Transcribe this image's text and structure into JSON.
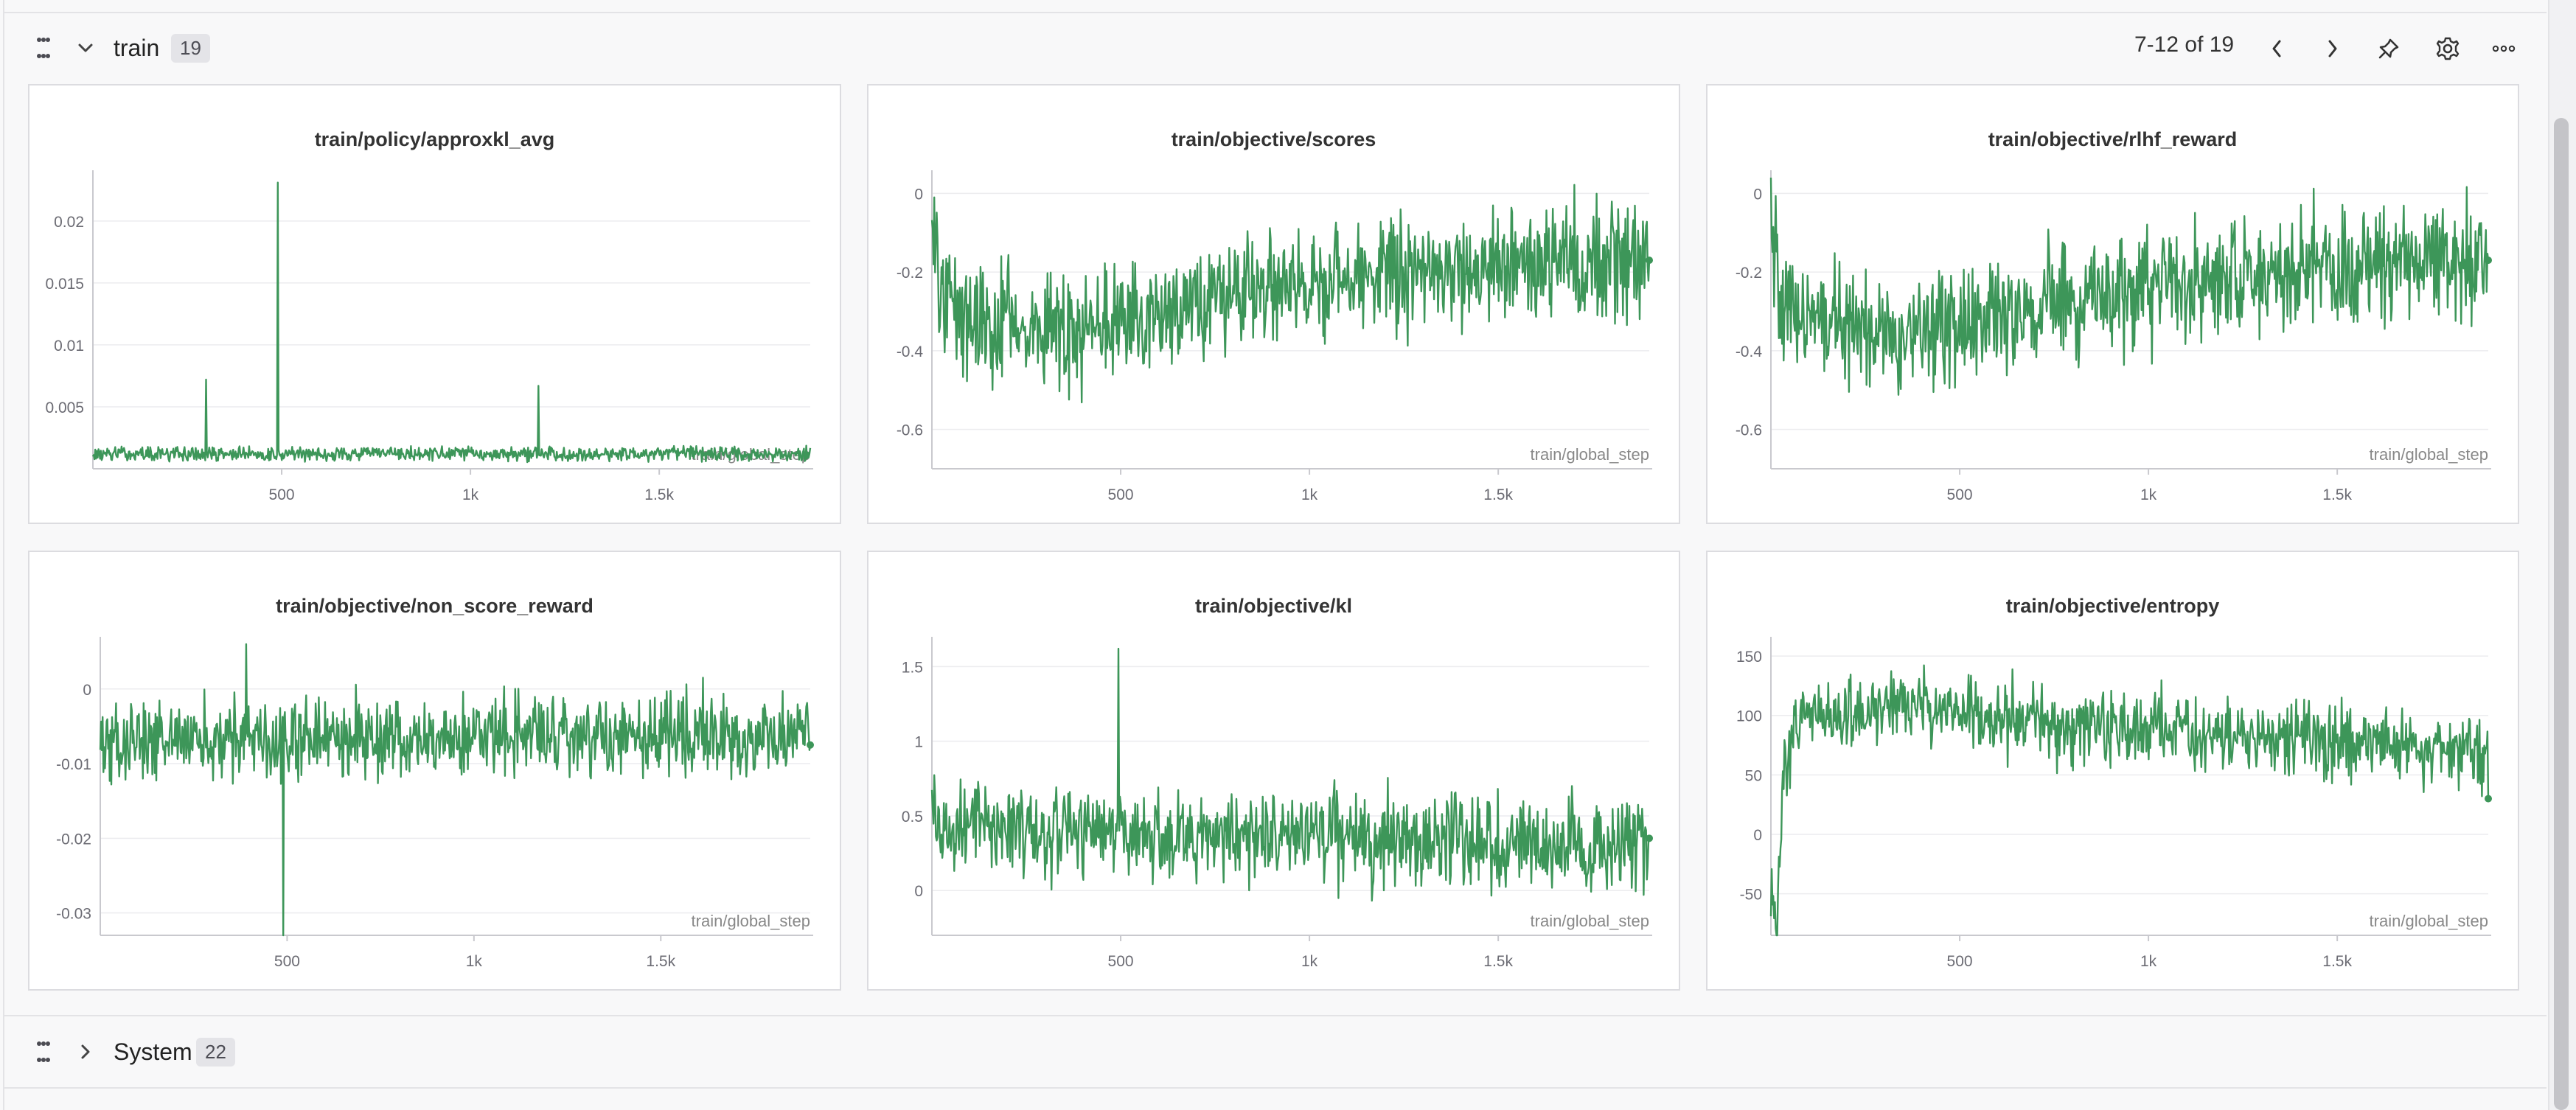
{
  "train_section": {
    "title": "train",
    "count": "19",
    "pager": "7-12 of 19"
  },
  "system_section": {
    "title": "System",
    "count": "22"
  },
  "icons": [
    "drag-handle-icon",
    "chevron-down-icon",
    "chevron-left-icon",
    "chevron-right-icon",
    "pin-icon",
    "gear-icon",
    "more-icon",
    "chevron-right-icon"
  ],
  "colors": {
    "series": "#3d9659",
    "grid": "#ececef",
    "axis": "#c9c9ce",
    "tick_text": "#6b6b73"
  },
  "chart_data": [
    {
      "type": "line",
      "title": "train/policy/approxkl_avg",
      "xlabel": "train/global_step",
      "xlim": [
        0,
        1900
      ],
      "ylim": [
        0,
        0.0235
      ],
      "x_ticks": [
        500,
        1000,
        1500
      ],
      "x_tick_labels": [
        "500",
        "1k",
        "1.5k"
      ],
      "y_ticks": [
        0.005,
        0.01,
        0.015,
        0.02
      ],
      "y_tick_labels": [
        "0.005",
        "0.01",
        "0.015",
        "0.02"
      ],
      "series": [
        {
          "start_x": 0,
          "end_x": 1900,
          "baseline": 0.0012,
          "noise": 0.0007,
          "spikes": [
            [
              300,
              0.0072
            ],
            [
              490,
              0.0231
            ],
            [
              1180,
              0.0067
            ]
          ]
        }
      ]
    },
    {
      "type": "line",
      "title": "train/objective/scores",
      "xlabel": "train/global_step",
      "xlim": [
        0,
        1900
      ],
      "ylim": [
        -0.7,
        0.04
      ],
      "x_ticks": [
        500,
        1000,
        1500
      ],
      "x_tick_labels": [
        "500",
        "1k",
        "1.5k"
      ],
      "y_ticks": [
        0,
        -0.2,
        -0.4,
        -0.6
      ],
      "y_tick_labels": [
        "0",
        "-0.2",
        "-0.4",
        "-0.6"
      ],
      "series": [
        {
          "start_x": 0,
          "end_x": 1900,
          "trend": [
            [
              0,
              -0.05
            ],
            [
              30,
              -0.3
            ],
            [
              350,
              -0.36
            ],
            [
              800,
              -0.26
            ],
            [
              1200,
              -0.2
            ],
            [
              1900,
              -0.17
            ]
          ],
          "noise": 0.12,
          "last_value": -0.17
        }
      ]
    },
    {
      "type": "line",
      "title": "train/objective/rlhf_reward",
      "xlabel": "train/global_step",
      "xlim": [
        0,
        1900
      ],
      "ylim": [
        -0.7,
        0.04
      ],
      "x_ticks": [
        500,
        1000,
        1500
      ],
      "x_tick_labels": [
        "500",
        "1k",
        "1.5k"
      ],
      "y_ticks": [
        0,
        -0.2,
        -0.4,
        -0.6
      ],
      "y_tick_labels": [
        "0",
        "-0.2",
        "-0.4",
        "-0.6"
      ],
      "series": [
        {
          "start_x": 0,
          "end_x": 1900,
          "trend": [
            [
              0,
              -0.05
            ],
            [
              30,
              -0.3
            ],
            [
              350,
              -0.37
            ],
            [
              800,
              -0.27
            ],
            [
              1200,
              -0.21
            ],
            [
              1900,
              -0.17
            ]
          ],
          "noise": 0.12,
          "last_value": -0.17
        }
      ]
    },
    {
      "type": "line",
      "title": "train/objective/non_score_reward",
      "xlabel": "train/global_step",
      "xlim": [
        0,
        1900
      ],
      "ylim": [
        -0.033,
        0.006
      ],
      "x_ticks": [
        500,
        1000,
        1500
      ],
      "x_tick_labels": [
        "500",
        "1k",
        "1.5k"
      ],
      "y_ticks": [
        0,
        -0.01,
        -0.02,
        -0.03
      ],
      "y_tick_labels": [
        "0",
        "-0.01",
        "-0.02",
        "-0.03"
      ],
      "series": [
        {
          "start_x": 0,
          "end_x": 1900,
          "trend": [
            [
              0,
              -0.007
            ],
            [
              1900,
              -0.006
            ]
          ],
          "noise": 0.0045,
          "spikes": [
            [
              490,
              -0.033
            ],
            [
              390,
              0.006
            ]
          ],
          "last_value": -0.0075
        }
      ]
    },
    {
      "type": "line",
      "title": "train/objective/kl",
      "xlabel": "train/global_step",
      "xlim": [
        0,
        1900
      ],
      "ylim": [
        -0.3,
        1.65
      ],
      "x_ticks": [
        500,
        1000,
        1500
      ],
      "x_tick_labels": [
        "500",
        "1k",
        "1.5k"
      ],
      "y_ticks": [
        0,
        0.5,
        1,
        1.5
      ],
      "y_tick_labels": [
        "0",
        "0.5",
        "1",
        "1.5"
      ],
      "series": [
        {
          "start_x": 0,
          "end_x": 1900,
          "trend": [
            [
              0,
              0.45
            ],
            [
              800,
              0.35
            ],
            [
              1900,
              0.3
            ]
          ],
          "noise": 0.25,
          "spikes": [
            [
              495,
              1.62
            ]
          ],
          "last_value": 0.35
        }
      ]
    },
    {
      "type": "line",
      "title": "train/objective/entropy",
      "xlabel": "train/global_step",
      "xlim": [
        0,
        1900
      ],
      "ylim": [
        -85,
        160
      ],
      "x_ticks": [
        500,
        1000,
        1500
      ],
      "x_tick_labels": [
        "500",
        "1k",
        "1.5k"
      ],
      "y_ticks": [
        150,
        100,
        50,
        0,
        -50
      ],
      "y_tick_labels": [
        "150",
        "100",
        "50",
        "0",
        "-50"
      ],
      "series": [
        {
          "start_x": 0,
          "end_x": 1900,
          "trend": [
            [
              0,
              -60
            ],
            [
              15,
              -80
            ],
            [
              30,
              40
            ],
            [
              60,
              95
            ],
            [
              350,
              110
            ],
            [
              800,
              90
            ],
            [
              1900,
              70
            ]
          ],
          "noise": 25,
          "last_value": 30
        }
      ]
    }
  ]
}
